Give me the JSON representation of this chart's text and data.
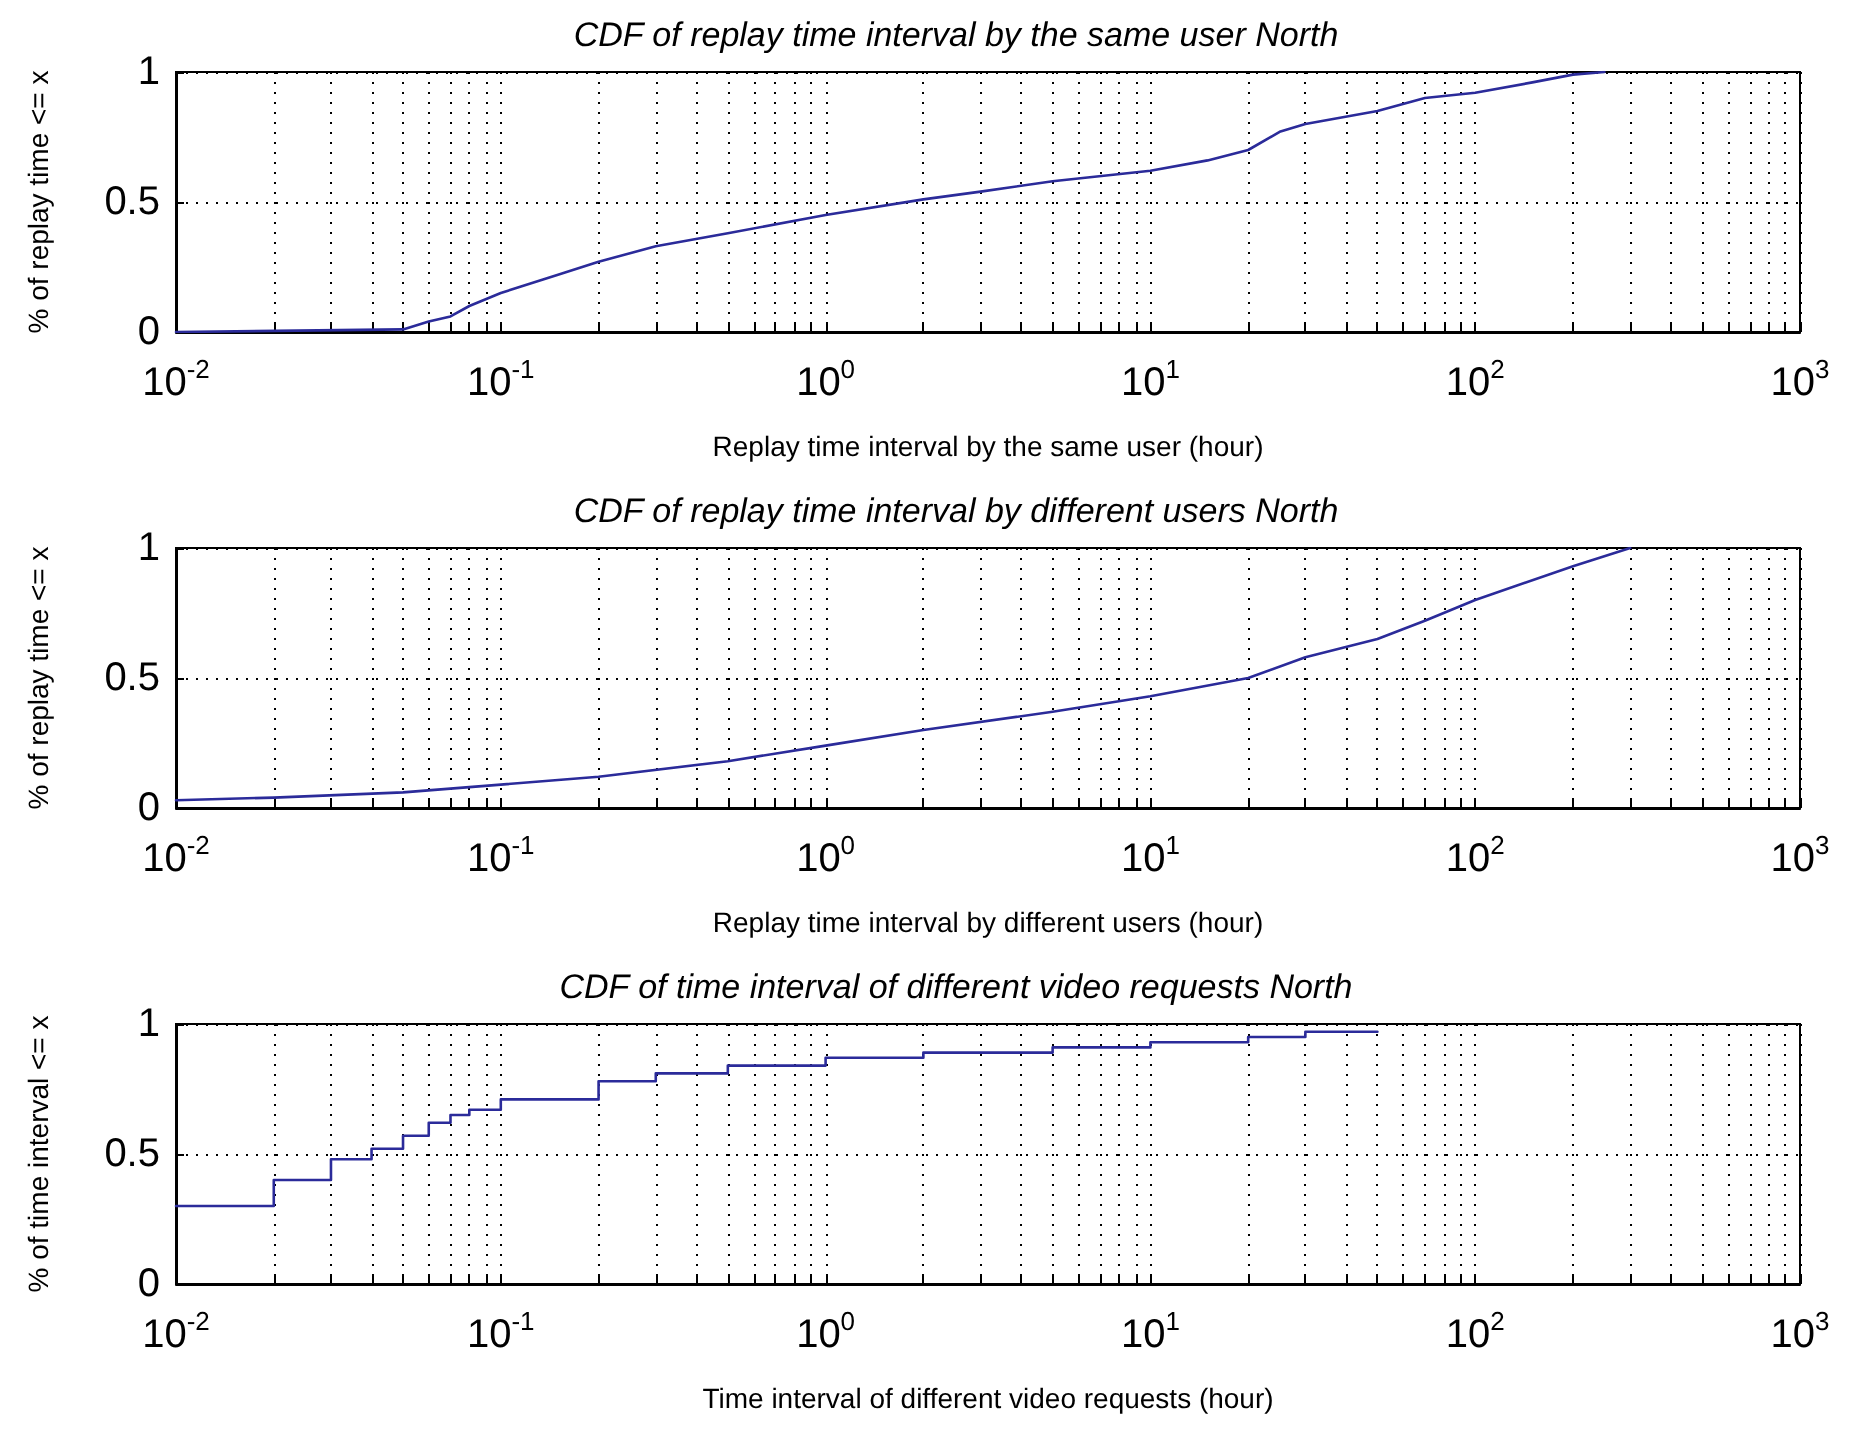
{
  "chart_data": [
    {
      "type": "line",
      "title": "CDF of replay time interval by the same user North",
      "xlabel": "Replay time interval by the same user (hour)",
      "ylabel": "% of replay time <= x",
      "log": "x",
      "grid": true,
      "line_style": "solid",
      "marker": "none",
      "xlim": [
        0.01,
        1000
      ],
      "xticks": [
        {
          "value": 0.01,
          "label": "10$^{-2}$"
        },
        {
          "value": 0.1,
          "label": "10$^{-1}$"
        },
        {
          "value": 1,
          "label": "10$^{0}$"
        },
        {
          "value": 10,
          "label": "10$^{1}$"
        },
        {
          "value": 100,
          "label": "10$^{2}$"
        },
        {
          "value": 1000,
          "label": "10$^{3}$"
        }
      ],
      "ylim": [
        0,
        1
      ],
      "yticks": [
        0,
        0.5,
        1
      ],
      "series": [
        {
          "color": "#2b2b9a",
          "x": [
            0.01,
            0.05,
            0.06,
            0.07,
            0.08,
            0.1,
            0.15,
            0.2,
            0.3,
            0.5,
            1,
            2,
            3,
            5,
            10,
            15,
            20,
            25,
            30,
            50,
            70,
            100,
            150,
            200,
            250
          ],
          "values": [
            0,
            0.01,
            0.04,
            0.06,
            0.1,
            0.15,
            0.22,
            0.27,
            0.33,
            0.38,
            0.45,
            0.51,
            0.54,
            0.58,
            0.62,
            0.66,
            0.7,
            0.77,
            0.8,
            0.85,
            0.9,
            0.92,
            0.96,
            0.99,
            1
          ]
        }
      ]
    },
    {
      "type": "line",
      "title": "CDF of replay time interval by different users North",
      "xlabel": "Replay time interval by different users (hour)",
      "ylabel": "% of replay time <= x",
      "log": "x",
      "grid": true,
      "line_style": "solid",
      "marker": "none",
      "xlim": [
        0.01,
        1000
      ],
      "xticks": [
        {
          "value": 0.01,
          "label": "10$^{-2}$"
        },
        {
          "value": 0.1,
          "label": "10$^{-1}$"
        },
        {
          "value": 1,
          "label": "10$^{0}$"
        },
        {
          "value": 10,
          "label": "10$^{1}$"
        },
        {
          "value": 100,
          "label": "10$^{2}$"
        },
        {
          "value": 1000,
          "label": "10$^{3}$"
        }
      ],
      "ylim": [
        0,
        1
      ],
      "yticks": [
        0,
        0.5,
        1
      ],
      "series": [
        {
          "color": "#2b2b9a",
          "x": [
            0.01,
            0.02,
            0.05,
            0.1,
            0.2,
            0.5,
            1,
            2,
            5,
            10,
            20,
            30,
            50,
            70,
            100,
            200,
            300
          ],
          "values": [
            0.03,
            0.04,
            0.06,
            0.09,
            0.12,
            0.18,
            0.24,
            0.3,
            0.37,
            0.43,
            0.5,
            0.58,
            0.65,
            0.72,
            0.8,
            0.93,
            1
          ]
        }
      ]
    },
    {
      "type": "step",
      "title": "CDF of time interval of different video requests North",
      "xlabel": "Time interval of different video requests (hour)",
      "ylabel": "% of time interval <= x",
      "log": "x",
      "grid": true,
      "line_style": "solid",
      "marker": "none",
      "xlim": [
        0.01,
        1000
      ],
      "xticks": [
        {
          "value": 0.01,
          "label": "10$^{-2}$"
        },
        {
          "value": 0.1,
          "label": "10$^{-1}$"
        },
        {
          "value": 1,
          "label": "10$^{0}$"
        },
        {
          "value": 10,
          "label": "10$^{1}$"
        },
        {
          "value": 100,
          "label": "10$^{2}$"
        },
        {
          "value": 1000,
          "label": "10$^{3}$"
        }
      ],
      "ylim": [
        0,
        1
      ],
      "yticks": [
        0,
        0.5,
        1
      ],
      "series": [
        {
          "color": "#2b2b9a",
          "x": [
            0.01,
            0.02,
            0.03,
            0.04,
            0.05,
            0.06,
            0.07,
            0.08,
            0.1,
            0.2,
            0.3,
            0.5,
            1,
            2,
            5,
            10,
            20,
            30,
            50
          ],
          "values": [
            0.3,
            0.4,
            0.48,
            0.52,
            0.57,
            0.62,
            0.65,
            0.67,
            0.71,
            0.78,
            0.81,
            0.84,
            0.87,
            0.89,
            0.91,
            0.93,
            0.95,
            0.97,
            0.97
          ]
        }
      ]
    }
  ]
}
